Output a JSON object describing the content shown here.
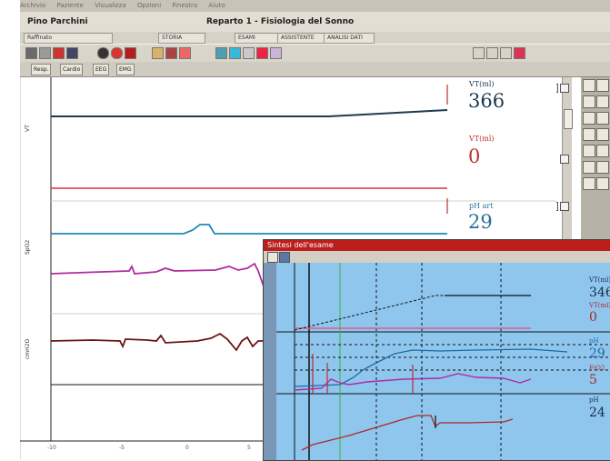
{
  "menu": {
    "items": [
      "Archivio",
      "Paziente",
      "Visualizza",
      "Opzioni",
      "Finestra",
      "Aiuto"
    ]
  },
  "titlebar": {
    "patient": "Pino Parchini",
    "module": "Reparto 1 - Fisiologia del Sonno"
  },
  "infobar": {
    "segments": [
      "Raffinato",
      "STORIA",
      "ESAMI",
      "ASSISTENTE",
      "ANALISI DATI"
    ]
  },
  "tabs": [
    "Resp.",
    "Cardio",
    "EEG",
    "EMG"
  ],
  "channels": [
    {
      "label": "VT(ml)",
      "value": "366",
      "color": "#1a3a52"
    },
    {
      "label": "VT(ml)",
      "value": "0",
      "color": "#b8322e"
    },
    {
      "label": "pH art",
      "value": "29",
      "color": "#2a6f96"
    }
  ],
  "xaxis": {
    "ticks": [
      "-10",
      "-5",
      "0",
      "5"
    ]
  },
  "overlay": {
    "title": "Sintesi dell'esame",
    "readouts": [
      {
        "label": "VT(ml)",
        "value": "346",
        "color": "#1a2a4a"
      },
      {
        "label": "VT(ml)",
        "value": "0",
        "color": "#b02828"
      },
      {
        "label": "pH",
        "value": "29",
        "color": "#1f6aa0"
      },
      {
        "label": "FiO2",
        "value": "5",
        "color": "#b02828"
      },
      {
        "label": "pH",
        "value": "24",
        "color": "#1a2a4a"
      }
    ]
  },
  "colors": {
    "ventilation": "#1e3b4c",
    "pressure": "#d7323a",
    "oxygen": "#1d8bb6",
    "magenta": "#b02c9e",
    "darkred": "#6b1414",
    "overlay_bg": "#8ec6ee"
  }
}
